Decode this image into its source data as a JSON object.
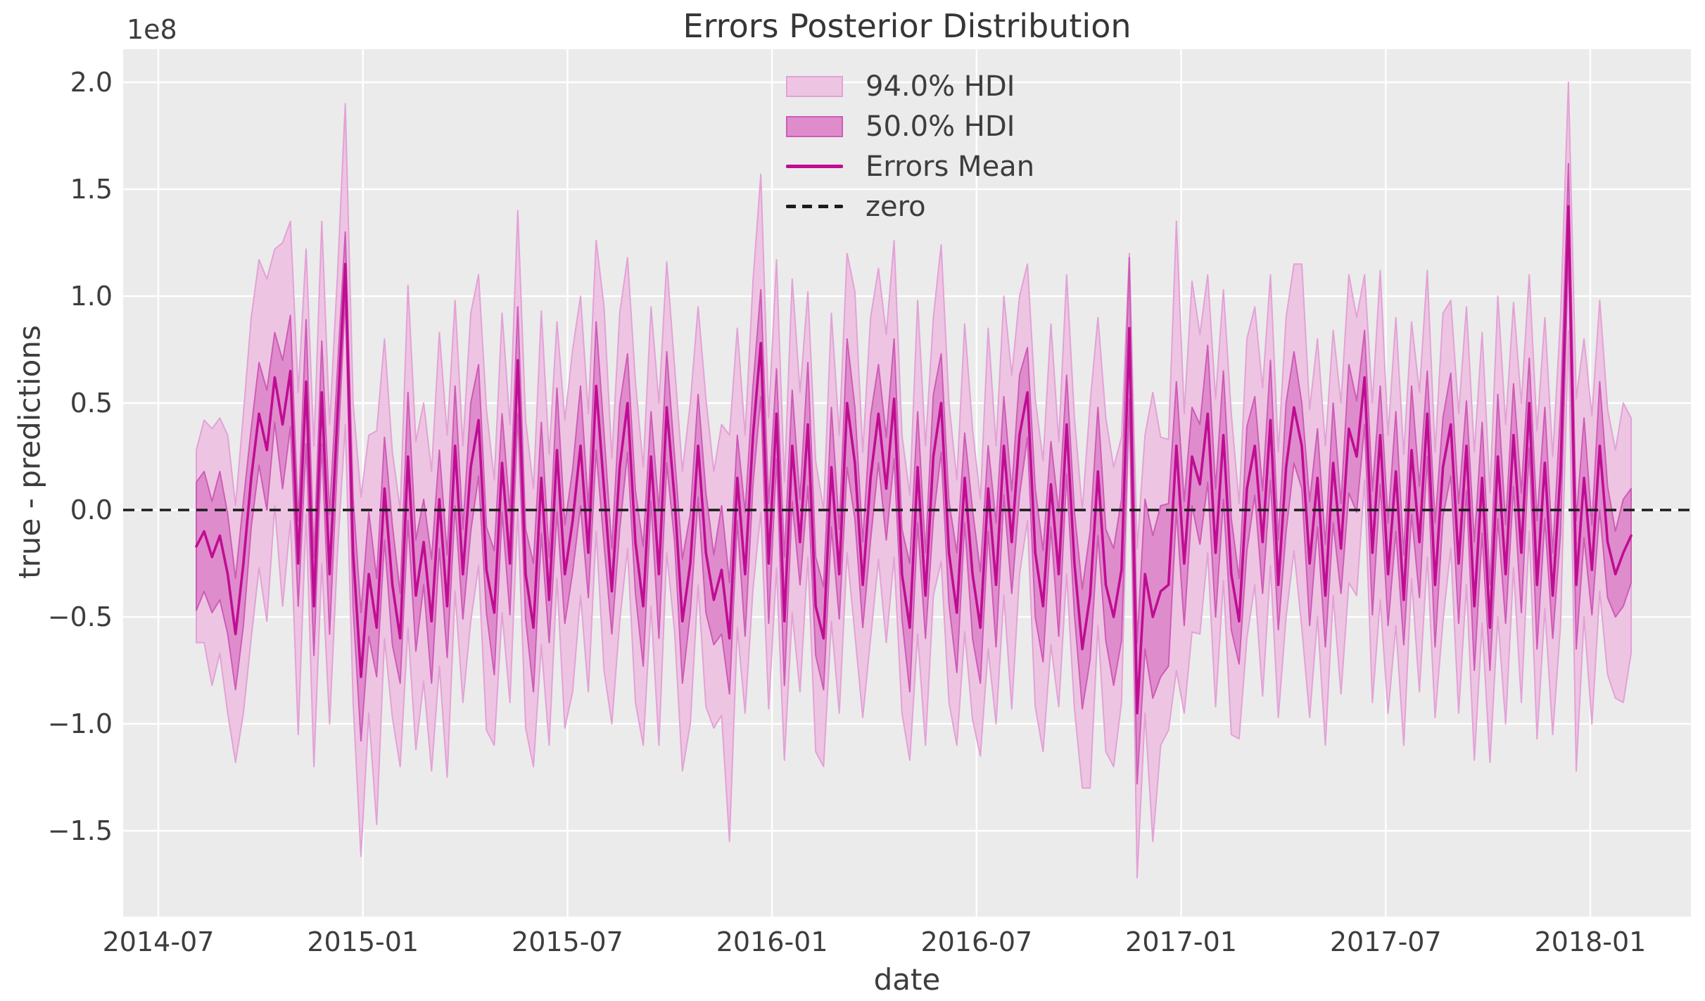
{
  "figure": {
    "background": "#ffffff",
    "plot_background": "#ebebeb",
    "grid_color": "#ffffff",
    "text_color": "#3d3d3d"
  },
  "chart_data": {
    "type": "line",
    "title": "Errors Posterior Distribution",
    "xlabel": "date",
    "ylabel": "true - predictions",
    "y_offset_label": "1e8",
    "value_units": "1e8",
    "grid": true,
    "legend_position": "upper center",
    "x_tick_labels": [
      "2014-07",
      "2015-01",
      "2015-07",
      "2016-01",
      "2016-07",
      "2017-01",
      "2017-07",
      "2018-01"
    ],
    "y_tick_labels": [
      "2.0",
      "1.5",
      "1.0",
      "0.5",
      "0.0",
      "−0.5",
      "−1.0",
      "−1.5"
    ],
    "y_tick_values": [
      2.0,
      1.5,
      1.0,
      0.5,
      0.0,
      -0.5,
      -1.0,
      -1.5
    ],
    "ylim": [
      -1.91,
      2.23
    ],
    "legend": {
      "items": [
        {
          "label": "94.0% HDI",
          "type": "band"
        },
        {
          "label": "50.0% HDI",
          "type": "band"
        },
        {
          "label": "Errors Mean",
          "type": "line"
        },
        {
          "label": "zero",
          "type": "dashed-line"
        }
      ]
    },
    "zero_line": {
      "label": "zero",
      "value": 0,
      "style": "dashed",
      "color": "#1c1c1c"
    },
    "colors": {
      "hdi94_fill": "#eec4e3",
      "hdi94_edge": "#e2a2d6",
      "hdi50_fill": "#df8ccd",
      "hdi50_edge": "#cd5cb6",
      "mean_line": "#bf0d92",
      "zero_line": "#1c1c1c"
    },
    "series": {
      "name": "Errors Mean",
      "start_date": "2014-08-04",
      "frequency": "weekly",
      "n_points": 184,
      "mean": [
        -0.17,
        -0.1,
        -0.22,
        -0.12,
        -0.3,
        -0.58,
        -0.25,
        0.15,
        0.45,
        0.28,
        0.62,
        0.4,
        0.65,
        -0.25,
        0.6,
        -0.45,
        0.55,
        -0.3,
        0.45,
        1.15,
        -0.2,
        -0.78,
        -0.3,
        -0.55,
        0.1,
        -0.35,
        -0.6,
        0.25,
        -0.4,
        -0.15,
        -0.52,
        0.05,
        -0.45,
        0.3,
        -0.3,
        0.2,
        0.42,
        -0.28,
        -0.48,
        0.22,
        -0.25,
        0.7,
        -0.3,
        -0.55,
        0.15,
        -0.42,
        0.28,
        -0.3,
        -0.05,
        0.3,
        -0.2,
        0.58,
        0.1,
        -0.38,
        0.2,
        0.5,
        -0.15,
        -0.45,
        0.25,
        -0.3,
        0.48,
        0.05,
        -0.52,
        -0.25,
        0.3,
        -0.2,
        -0.42,
        -0.28,
        -0.6,
        0.15,
        -0.3,
        0.35,
        0.78,
        -0.25,
        0.45,
        -0.52,
        0.3,
        -0.15,
        0.4,
        -0.45,
        -0.6,
        0.2,
        -0.3,
        0.5,
        0.22,
        -0.35,
        0.15,
        0.45,
        0.1,
        0.52,
        -0.3,
        -0.55,
        0.2,
        -0.4,
        0.25,
        0.5,
        -0.2,
        -0.48,
        0.15,
        -0.3,
        -0.55,
        0.1,
        -0.35,
        0.3,
        -0.15,
        0.35,
        0.55,
        -0.2,
        -0.45,
        0.12,
        -0.3,
        0.4,
        -0.25,
        -0.65,
        -0.4,
        0.18,
        -0.35,
        -0.5,
        -0.28,
        0.85,
        -0.95,
        -0.3,
        -0.5,
        -0.38,
        -0.35,
        0.3,
        -0.25,
        0.25,
        0.12,
        0.45,
        -0.2,
        0.35,
        -0.3,
        -0.52,
        0.1,
        0.3,
        -0.15,
        0.42,
        -0.35,
        0.2,
        0.48,
        0.3,
        -0.25,
        0.15,
        -0.4,
        0.22,
        -0.18,
        0.38,
        0.25,
        0.62,
        -0.2,
        0.35,
        -0.3,
        0.18,
        -0.42,
        0.28,
        -0.15,
        0.45,
        -0.35,
        0.2,
        0.4,
        -0.25,
        0.3,
        -0.45,
        0.15,
        -0.55,
        0.25,
        -0.3,
        0.35,
        -0.2,
        0.5,
        -0.35,
        0.22,
        -0.4,
        0.18,
        1.42,
        -0.35,
        0.15,
        -0.28,
        0.3,
        -0.15,
        -0.3,
        -0.2,
        -0.12
      ],
      "hdi94_halfwidth": [
        0.45,
        0.52,
        0.6,
        0.55,
        0.65,
        0.6,
        0.7,
        0.75,
        0.72,
        0.8,
        0.6,
        0.85,
        0.7,
        0.8,
        0.62,
        0.75,
        0.8,
        0.7,
        0.65,
        0.75,
        0.7,
        0.84,
        0.65,
        0.92,
        0.7,
        0.62,
        0.6,
        0.8,
        0.72,
        0.65,
        0.7,
        0.78,
        0.8,
        0.68,
        0.6,
        0.72,
        0.68,
        0.75,
        0.62,
        0.7,
        0.65,
        0.7,
        0.72,
        0.65,
        0.78,
        0.68,
        0.6,
        0.72,
        0.8,
        0.7,
        0.65,
        0.68,
        0.85,
        0.62,
        0.72,
        0.68,
        0.75,
        0.65,
        0.7,
        0.8,
        0.68,
        0.62,
        0.7,
        0.75,
        0.65,
        0.72,
        0.6,
        0.68,
        0.95,
        0.7,
        0.65,
        0.72,
        0.79,
        0.68,
        0.72,
        0.65,
        0.78,
        0.7,
        0.62,
        0.68,
        0.6,
        0.72,
        0.65,
        0.7,
        0.8,
        0.62,
        0.75,
        0.68,
        0.72,
        0.74,
        0.65,
        0.62,
        0.78,
        0.7,
        0.65,
        0.74,
        0.7,
        0.62,
        0.72,
        0.68,
        0.6,
        0.75,
        0.65,
        0.7,
        0.78,
        0.65,
        0.6,
        0.72,
        0.68,
        0.75,
        0.62,
        0.7,
        0.68,
        0.65,
        0.9,
        0.72,
        0.78,
        0.7,
        0.62,
        0.35,
        0.77,
        0.65,
        1.05,
        0.72,
        0.68,
        1.05,
        0.7,
        0.82,
        0.7,
        0.65,
        0.72,
        0.68,
        0.75,
        0.55,
        0.7,
        0.65,
        0.72,
        0.68,
        0.62,
        0.7,
        0.67,
        0.85,
        0.72,
        0.65,
        0.7,
        0.62,
        0.68,
        0.72,
        0.65,
        0.48,
        0.7,
        0.77,
        0.65,
        0.72,
        0.68,
        0.6,
        0.7,
        0.67,
        0.62,
        0.72,
        0.58,
        0.7,
        0.65,
        0.72,
        0.68,
        0.63,
        0.75,
        0.7,
        0.62,
        0.7,
        0.6,
        0.72,
        0.68,
        0.65,
        0.72,
        0.58,
        0.87,
        0.65,
        0.72,
        0.68,
        0.62,
        0.58,
        0.7,
        0.55
      ],
      "hdi50_halfwidth": [
        0.3,
        0.28,
        0.26,
        0.3,
        0.28,
        0.26,
        0.29,
        0.23,
        0.24,
        0.28,
        0.21,
        0.3,
        0.26,
        0.2,
        0.29,
        0.23,
        0.24,
        0.28,
        0.21,
        0.15,
        0.26,
        0.3,
        0.29,
        0.23,
        0.24,
        0.28,
        0.21,
        0.3,
        0.26,
        0.2,
        0.29,
        0.23,
        0.24,
        0.28,
        0.21,
        0.3,
        0.26,
        0.2,
        0.29,
        0.23,
        0.24,
        0.25,
        0.21,
        0.3,
        0.26,
        0.2,
        0.29,
        0.23,
        0.24,
        0.28,
        0.21,
        0.3,
        0.26,
        0.2,
        0.29,
        0.23,
        0.24,
        0.28,
        0.21,
        0.3,
        0.26,
        0.2,
        0.29,
        0.23,
        0.24,
        0.28,
        0.21,
        0.3,
        0.26,
        0.2,
        0.29,
        0.23,
        0.25,
        0.28,
        0.21,
        0.3,
        0.26,
        0.2,
        0.29,
        0.23,
        0.24,
        0.28,
        0.21,
        0.3,
        0.26,
        0.2,
        0.29,
        0.23,
        0.24,
        0.28,
        0.21,
        0.3,
        0.26,
        0.2,
        0.29,
        0.23,
        0.24,
        0.28,
        0.21,
        0.3,
        0.26,
        0.2,
        0.29,
        0.23,
        0.24,
        0.28,
        0.21,
        0.3,
        0.26,
        0.2,
        0.29,
        0.23,
        0.24,
        0.28,
        0.3,
        0.3,
        0.26,
        0.32,
        0.33,
        0.33,
        0.33,
        0.35,
        0.38,
        0.4,
        0.38,
        0.3,
        0.29,
        0.23,
        0.28,
        0.32,
        0.3,
        0.3,
        0.26,
        0.2,
        0.29,
        0.23,
        0.24,
        0.28,
        0.21,
        0.3,
        0.26,
        0.2,
        0.29,
        0.23,
        0.24,
        0.28,
        0.21,
        0.3,
        0.26,
        0.22,
        0.29,
        0.23,
        0.24,
        0.28,
        0.21,
        0.3,
        0.26,
        0.2,
        0.29,
        0.23,
        0.24,
        0.28,
        0.21,
        0.3,
        0.26,
        0.2,
        0.29,
        0.23,
        0.24,
        0.28,
        0.21,
        0.3,
        0.26,
        0.2,
        0.29,
        0.2,
        0.3,
        0.28,
        0.21,
        0.3,
        0.26,
        0.2,
        0.25,
        0.22
      ]
    }
  }
}
